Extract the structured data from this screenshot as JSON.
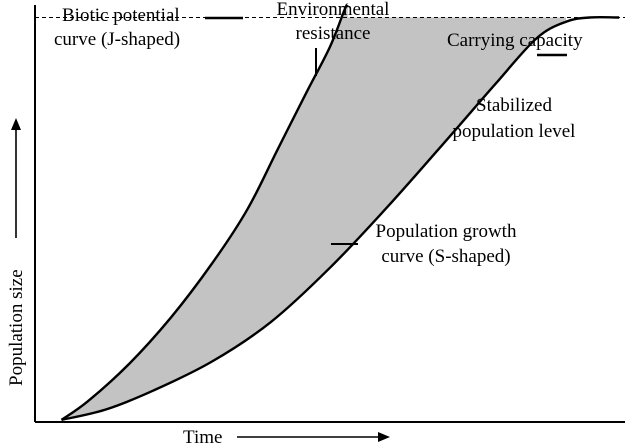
{
  "chart_data": {
    "type": "line",
    "title": "",
    "xlabel": "Time",
    "ylabel": "Population size",
    "xlim": [
      0,
      10
    ],
    "ylim": [
      0,
      10
    ],
    "grid": false,
    "series": [
      {
        "name": "Biotic potential curve (J-shaped)",
        "shape": "J",
        "x": [
          0.45,
          0.9,
          1.6,
          2.3,
          3.0,
          3.6,
          4.1,
          4.6,
          5.0,
          5.25,
          5.3
        ],
        "y": [
          0.05,
          0.5,
          1.4,
          2.5,
          3.8,
          5.1,
          6.5,
          7.9,
          9.0,
          9.9,
          10.0
        ]
      },
      {
        "name": "Population growth curve (S-shaped)",
        "shape": "S",
        "x": [
          0.45,
          1.2,
          2.0,
          3.0,
          4.0,
          5.0,
          6.0,
          7.0,
          7.8,
          8.5,
          9.0,
          9.4,
          9.9
        ],
        "y": [
          0.05,
          0.3,
          0.75,
          1.45,
          2.4,
          3.7,
          5.2,
          6.8,
          8.1,
          9.2,
          9.6,
          9.7,
          9.7
        ]
      }
    ],
    "reference_lines": [
      {
        "axis": "y",
        "value": 9.7,
        "style": "dashed"
      }
    ],
    "shaded_region": "between J-shaped and S-shaped curves",
    "annotations": {
      "biotic_line1": "Biotic potential",
      "biotic_line2": "curve (J-shaped)",
      "env_line1": "Environmental",
      "env_line2": "resistance",
      "carrying": "Carrying capacity",
      "stab_line1": "Stabilized",
      "stab_line2": "population level",
      "growth_line1": "Population growth",
      "growth_line2": "curve (S-shaped)"
    }
  }
}
